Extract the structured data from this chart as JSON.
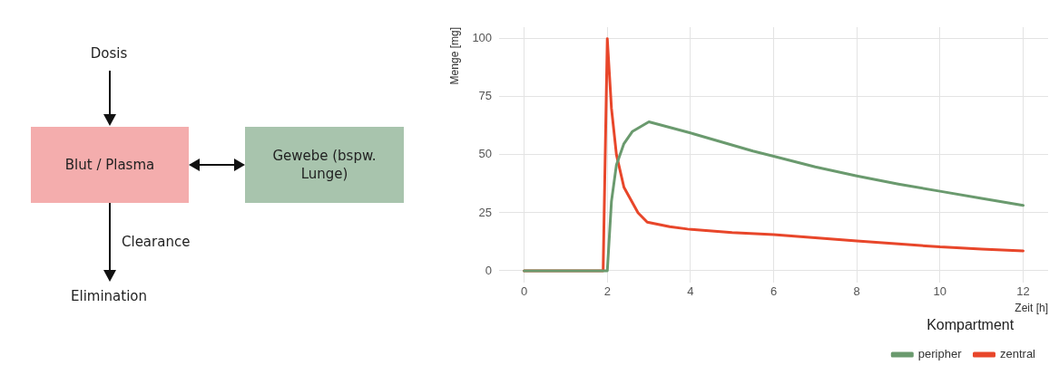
{
  "chart_data": [
    {
      "type": "other",
      "annotations": [
        "Dosis",
        "Blut / Plasma",
        "Gewebe (bspw. Lunge)",
        "Clearance",
        "Elimination"
      ]
    },
    {
      "type": "line",
      "xlabel": "Zeit [h]",
      "ylabel": "Menge [mg]",
      "legend_title": "Kompartment",
      "legend": "bottom",
      "grid": true,
      "marker": "none",
      "line_style": "solid",
      "xlim": [
        -0.6,
        12.6
      ],
      "ylim": [
        -5,
        105
      ],
      "xticks": [
        0,
        2,
        4,
        6,
        8,
        10,
        12
      ],
      "yticks": [
        0,
        25,
        50,
        75,
        100
      ],
      "series": [
        {
          "name": "peripher",
          "color": "#6a9a6e",
          "x": [
            0,
            1,
            2,
            2.1,
            2.22,
            2.4,
            2.6,
            3,
            4,
            5.5,
            6,
            7,
            8,
            9,
            10,
            11,
            12
          ],
          "values": [
            0,
            0,
            0,
            30,
            45.7,
            54.8,
            60,
            64.2,
            59.4,
            51.6,
            49.4,
            44.8,
            40.9,
            37.4,
            34.3,
            31.2,
            28.2
          ]
        },
        {
          "name": "zentral",
          "color": "#e8462a",
          "x": [
            0,
            1,
            1.9,
            2,
            2.05,
            2.1,
            2.22,
            2.4,
            2.74,
            2.96,
            3.5,
            3.93,
            5,
            6,
            7,
            8,
            9,
            10,
            11,
            12
          ],
          "values": [
            0,
            0,
            0,
            100,
            85,
            70,
            50,
            36,
            25,
            21,
            19,
            18,
            16.5,
            15.6,
            14.2,
            12.9,
            11.6,
            10.3,
            9.4,
            8.6
          ]
        }
      ]
    }
  ]
}
